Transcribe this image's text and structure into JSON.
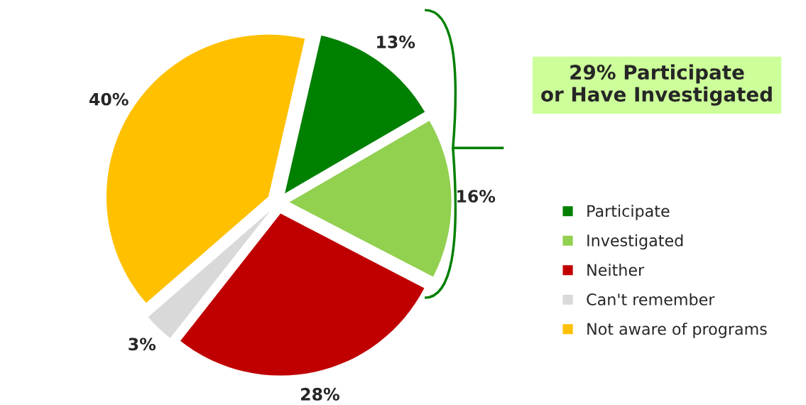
{
  "chart_data": {
    "type": "pie",
    "categories": [
      "Participate",
      "Investigated",
      "Neither",
      "Can't remember",
      "Not aware of programs"
    ],
    "values": [
      13,
      16,
      28,
      3,
      40
    ],
    "colors": [
      "#008000",
      "#92d050",
      "#c00000",
      "#d9d9d9",
      "#ffc000"
    ],
    "value_labels": [
      "13%",
      "16%",
      "28%",
      "3%",
      "40%"
    ],
    "annotations": [
      "29% Participate\nor Have Investigated"
    ],
    "legend": "right"
  }
}
